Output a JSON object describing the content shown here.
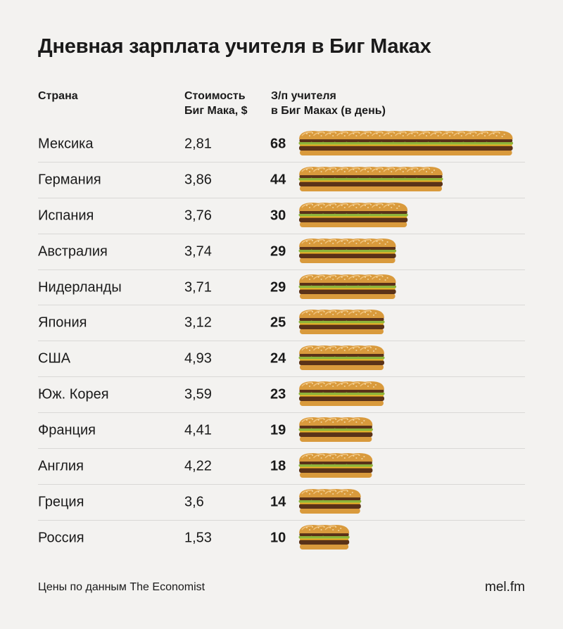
{
  "title": "Дневная зарплата учителя в Биг Маках",
  "headers": {
    "country": "Страна",
    "price_line1": "Стоимость",
    "price_line2": "Биг Мака, $",
    "wage_line1": "З/п учителя",
    "wage_line2": "в Биг Маках (в день)"
  },
  "chart_data": {
    "type": "table",
    "rows": [
      {
        "country": "Мексика",
        "price": "2,81",
        "wage": 68
      },
      {
        "country": "Германия",
        "price": "3,86",
        "wage": 44
      },
      {
        "country": "Испания",
        "price": "3,76",
        "wage": 30
      },
      {
        "country": "Австралия",
        "price": "3,74",
        "wage": 29
      },
      {
        "country": "Нидерланды",
        "price": "3,71",
        "wage": 29
      },
      {
        "country": "Япония",
        "price": "3,12",
        "wage": 25
      },
      {
        "country": "США",
        "price": "4,93",
        "wage": 24
      },
      {
        "country": "Юж. Корея",
        "price": "3,59",
        "wage": 23
      },
      {
        "country": "Франция",
        "price": "4,41",
        "wage": 19
      },
      {
        "country": "Англия",
        "price": "4,22",
        "wage": 18
      },
      {
        "country": "Греция",
        "price": "3,6",
        "wage": 14
      },
      {
        "country": "Россия",
        "price": "1,53",
        "wage": 10
      }
    ]
  },
  "footer": {
    "source": "Цены по данным The Economist",
    "brand": "mel.fm"
  },
  "icon": "burger-icon",
  "colors": {
    "background": "#f3f2f0",
    "bun": "#d99a3c",
    "lettuce": "#8db43a",
    "patty": "#5a3218",
    "cheese": "#f0b428"
  }
}
